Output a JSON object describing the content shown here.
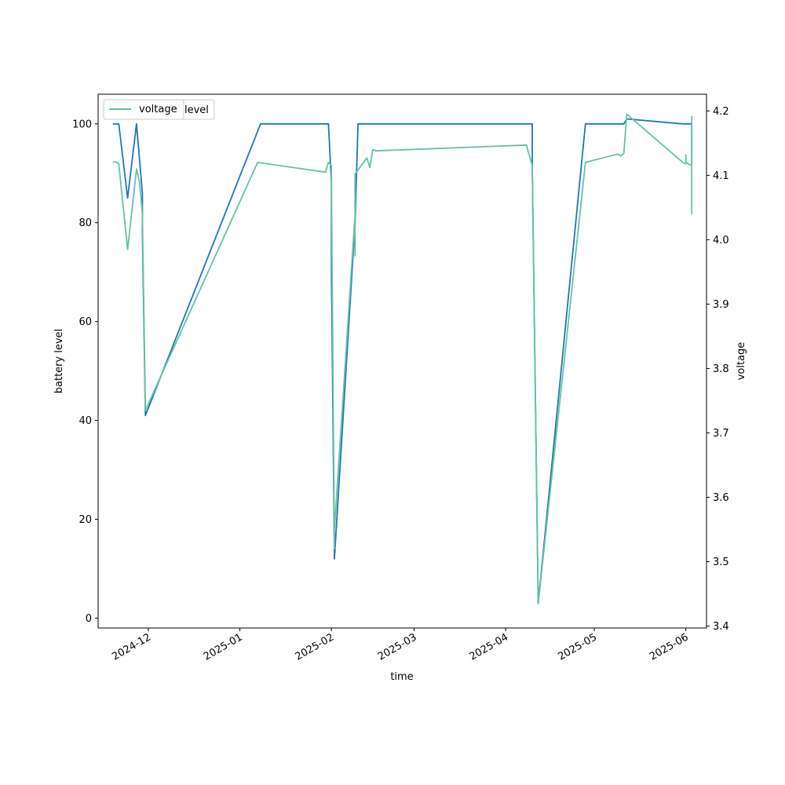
{
  "chart_data": {
    "type": "line",
    "xlabel": "time",
    "ylabel_left": "battery level",
    "ylabel_right": "voltage",
    "x_ticks": [
      "2024-12",
      "2025-01",
      "2025-02",
      "2025-03",
      "2025-04",
      "2025-05",
      "2025-06"
    ],
    "y_left_ticks": [
      0,
      20,
      40,
      60,
      80,
      100
    ],
    "y_right_ticks": [
      3.4,
      3.5,
      3.6,
      3.7,
      3.8,
      3.9,
      4.0,
      4.1,
      4.2
    ],
    "ylim_left": [
      -2,
      106
    ],
    "ylim_right": [
      3.397,
      4.226
    ],
    "xlim": [
      "2024-11-14",
      "2025-06-08"
    ],
    "legend": {
      "placement": "upper-left",
      "labels": [
        "voltage",
        "level"
      ]
    },
    "grid": false,
    "series": [
      {
        "name": "level",
        "axis": "left",
        "color": "#1f77b4",
        "points": [
          [
            "2024-11-19",
            100
          ],
          [
            "2024-11-21",
            100
          ],
          [
            "2024-11-24",
            85
          ],
          [
            "2024-11-27",
            100
          ],
          [
            "2024-11-29",
            86
          ],
          [
            "2024-11-29",
            78
          ],
          [
            "2024-11-30",
            41
          ],
          [
            "2025-01-08",
            100
          ],
          [
            "2025-01-31",
            100
          ],
          [
            "2025-02-01",
            88
          ],
          [
            "2025-02-01",
            70
          ],
          [
            "2025-02-02",
            12
          ],
          [
            "2025-02-09",
            80
          ],
          [
            "2025-02-10",
            100
          ],
          [
            "2025-02-11",
            100
          ],
          [
            "2025-04-10",
            100
          ],
          [
            "2025-04-10",
            92
          ],
          [
            "2025-04-12",
            3
          ],
          [
            "2025-04-28",
            100
          ],
          [
            "2025-05-11",
            100
          ],
          [
            "2025-05-12",
            101
          ],
          [
            "2025-05-31",
            100
          ],
          [
            "2025-06-02",
            100
          ],
          [
            "2025-06-03",
            100
          ],
          [
            "2025-06-03",
            92
          ],
          [
            "2025-06-03",
            99
          ]
        ]
      },
      {
        "name": "voltage",
        "axis": "right",
        "color": "#66c2a5",
        "points": [
          [
            "2024-11-19",
            4.12
          ],
          [
            "2024-11-20",
            4.121
          ],
          [
            "2024-11-21",
            4.118
          ],
          [
            "2024-11-24",
            3.985
          ],
          [
            "2024-11-27",
            4.11
          ],
          [
            "2024-11-28",
            4.09
          ],
          [
            "2024-11-29",
            4.04
          ],
          [
            "2024-11-30",
            3.735
          ],
          [
            "2025-01-07",
            4.12
          ],
          [
            "2025-01-30",
            4.105
          ],
          [
            "2025-01-31",
            4.12
          ],
          [
            "2025-02-01",
            4.115
          ],
          [
            "2025-02-01",
            4.09
          ],
          [
            "2025-02-02",
            3.52
          ],
          [
            "2025-02-02",
            3.55
          ],
          [
            "2025-02-09",
            4.04
          ],
          [
            "2025-02-09",
            3.975
          ],
          [
            "2025-02-09",
            4.102
          ],
          [
            "2025-02-13",
            4.127
          ],
          [
            "2025-02-14",
            4.112
          ],
          [
            "2025-02-15",
            4.14
          ],
          [
            "2025-02-16",
            4.138
          ],
          [
            "2025-04-08",
            4.147
          ],
          [
            "2025-04-10",
            4.115
          ],
          [
            "2025-04-12",
            3.435
          ],
          [
            "2025-04-28",
            4.12
          ],
          [
            "2025-05-09",
            4.133
          ],
          [
            "2025-05-10",
            4.13
          ],
          [
            "2025-05-11",
            4.134
          ],
          [
            "2025-05-12",
            4.195
          ],
          [
            "2025-05-31",
            4.12
          ],
          [
            "2025-06-01",
            4.118
          ],
          [
            "2025-06-01",
            4.132
          ],
          [
            "2025-06-01",
            4.12
          ],
          [
            "2025-06-03",
            4.115
          ],
          [
            "2025-06-03",
            4.04
          ],
          [
            "2025-06-03",
            4.192
          ]
        ]
      }
    ]
  }
}
